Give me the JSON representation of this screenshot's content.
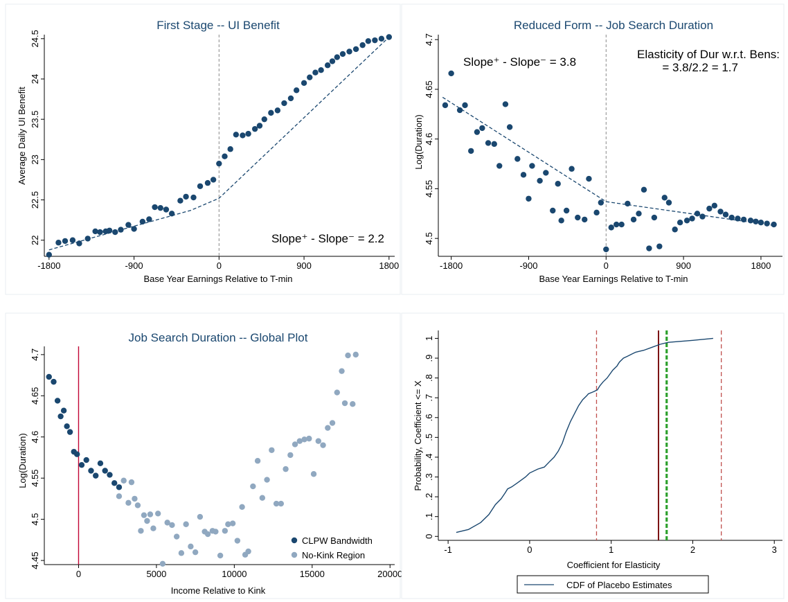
{
  "colors": {
    "navy": "#1a476f",
    "gray_point": "#90a8c0",
    "title": "#1a476f",
    "kink_line": "#c10534",
    "dash_red": "#c0504d",
    "dark_red": "#7b1112",
    "green": "#2ca02c",
    "frame": "#e8eef2"
  },
  "chart_data": [
    {
      "id": "first_stage",
      "type": "scatter",
      "title": "First Stage -- UI Benefit",
      "xlabel": "Base Year Earnings Relative to T-min",
      "ylabel": "Average Daily UI Benefit",
      "xlim": [
        -1850,
        1860
      ],
      "ylim": [
        21.8,
        24.55
      ],
      "xticks": [
        -1800,
        -900,
        0,
        900,
        1800
      ],
      "xtick_labels": [
        "-1800",
        "-900",
        "0",
        "900",
        "1800"
      ],
      "yticks": [
        22,
        22.5,
        23,
        23.5,
        24,
        24.5
      ],
      "ytick_labels": [
        "22",
        "22.5",
        "23",
        "23.5",
        "24",
        "24.5"
      ],
      "annotation": "Slope⁺ - Slope⁻ = 2.2",
      "kink_at": 0,
      "points": {
        "x": [
          -1800,
          -1700,
          -1630,
          -1550,
          -1480,
          -1390,
          -1310,
          -1260,
          -1200,
          -1160,
          -1100,
          -1040,
          -960,
          -900,
          -810,
          -740,
          -680,
          -620,
          -560,
          -500,
          -410,
          -350,
          -270,
          -200,
          -120,
          -60,
          0,
          60,
          120,
          180,
          250,
          310,
          380,
          430,
          480,
          550,
          620,
          690,
          760,
          820,
          900,
          960,
          1020,
          1080,
          1150,
          1200,
          1250,
          1310,
          1380,
          1450,
          1520,
          1580,
          1650,
          1720,
          1800
        ],
        "y": [
          21.82,
          21.97,
          21.99,
          22.0,
          21.96,
          22.02,
          22.11,
          22.1,
          22.11,
          22.12,
          22.1,
          22.13,
          22.19,
          22.14,
          22.23,
          22.26,
          22.41,
          22.4,
          22.38,
          22.33,
          22.49,
          22.54,
          22.53,
          22.67,
          22.71,
          22.75,
          22.95,
          23.04,
          23.13,
          23.31,
          23.3,
          23.32,
          23.38,
          23.42,
          23.5,
          23.58,
          23.61,
          23.7,
          23.76,
          23.86,
          23.95,
          24.02,
          24.08,
          24.11,
          24.17,
          24.22,
          24.27,
          24.31,
          24.34,
          24.37,
          24.42,
          24.47,
          24.48,
          24.5,
          24.52
        ]
      },
      "fit": {
        "x": [
          -1800,
          -300,
          0,
          1800
        ],
        "y": [
          21.88,
          22.37,
          22.52,
          24.52
        ]
      }
    },
    {
      "id": "reduced_form",
      "type": "scatter",
      "title": "Reduced Form -- Job Search Duration",
      "xlabel": "Base Year Earnings Relative to T-min",
      "ylabel": "Log(Duration)",
      "xlim": [
        -1950,
        2050
      ],
      "ylim": [
        4.482,
        4.705
      ],
      "xticks": [
        -1800,
        -900,
        0,
        900,
        1800
      ],
      "xtick_labels": [
        "-1800",
        "-900",
        "0",
        "900",
        "1800"
      ],
      "yticks": [
        4.5,
        4.55,
        4.6,
        4.65,
        4.7
      ],
      "ytick_labels": [
        "4.5",
        "4.55",
        "4.6",
        "4.65",
        "4.7"
      ],
      "annotation_left": "Slope⁺ - Slope⁻ = 3.8",
      "annotation_right_1": "Elasticity of Dur w.r.t. Bens:",
      "annotation_right_2": "= 3.8/2.2 = 1.7",
      "kink_at": 0,
      "points": {
        "x": [
          -1870,
          -1800,
          -1700,
          -1640,
          -1570,
          -1500,
          -1440,
          -1370,
          -1300,
          -1240,
          -1170,
          -1120,
          -1030,
          -960,
          -900,
          -860,
          -770,
          -700,
          -620,
          -560,
          -520,
          -460,
          -400,
          -330,
          -250,
          -200,
          -110,
          -60,
          0,
          60,
          120,
          180,
          250,
          320,
          380,
          440,
          500,
          560,
          620,
          680,
          730,
          800,
          860,
          940,
          1000,
          1060,
          1120,
          1200,
          1260,
          1330,
          1390,
          1460,
          1530,
          1600,
          1680,
          1740,
          1800,
          1870,
          1950
        ],
        "y": [
          4.634,
          4.666,
          4.629,
          4.634,
          4.588,
          4.607,
          4.611,
          4.596,
          4.595,
          4.573,
          4.635,
          4.612,
          4.58,
          4.564,
          4.54,
          4.573,
          4.558,
          4.566,
          4.528,
          4.555,
          4.518,
          4.528,
          4.57,
          4.521,
          4.519,
          4.56,
          4.526,
          4.536,
          4.489,
          4.511,
          4.514,
          4.514,
          4.535,
          4.519,
          4.525,
          4.549,
          4.49,
          4.521,
          4.492,
          4.541,
          4.536,
          4.509,
          4.516,
          4.518,
          4.52,
          4.525,
          4.522,
          4.53,
          4.533,
          4.527,
          4.524,
          4.521,
          4.52,
          4.519,
          4.518,
          4.517,
          4.516,
          4.515,
          4.514
        ]
      },
      "fit": {
        "x": [
          -1900,
          0,
          1950
        ],
        "y": [
          4.642,
          4.537,
          4.513
        ]
      }
    },
    {
      "id": "global_plot",
      "type": "scatter",
      "title": "Job Search Duration -- Global Plot",
      "xlabel": "Income Relative to Kink",
      "ylabel": "Log(Duration)",
      "xlim": [
        -2200,
        20300
      ],
      "ylim": [
        4.445,
        4.71
      ],
      "xticks": [
        0,
        5000,
        10000,
        15000,
        20000
      ],
      "xtick_labels": [
        "0",
        "5000",
        "10000",
        "15000",
        "20000"
      ],
      "yticks": [
        4.45,
        4.5,
        4.55,
        4.6,
        4.65,
        4.7
      ],
      "ytick_labels": [
        "4.45",
        "4.5",
        "4.55",
        "4.6",
        "4.65",
        "4.7"
      ],
      "kink_at": 0,
      "legend": [
        "CLPW Bandwidth",
        "No-Kink Region"
      ],
      "series": [
        {
          "name": "CLPW Bandwidth",
          "x": [
            -1900,
            -1600,
            -1350,
            -1150,
            -950,
            -750,
            -550,
            -300,
            -100,
            200,
            500,
            800,
            1100,
            1400,
            1700,
            2000,
            2300,
            2600
          ],
          "y": [
            4.673,
            4.667,
            4.644,
            4.625,
            4.632,
            4.613,
            4.606,
            4.582,
            4.579,
            4.566,
            4.572,
            4.559,
            4.553,
            4.568,
            4.559,
            4.554,
            4.544,
            4.539
          ]
        },
        {
          "name": "No-Kink Region",
          "x": [
            2600,
            2900,
            3200,
            3400,
            3600,
            3800,
            4000,
            4200,
            4400,
            4600,
            4800,
            5100,
            5400,
            5700,
            6000,
            6300,
            6600,
            6900,
            7200,
            7500,
            7800,
            8100,
            8300,
            8600,
            8800,
            9100,
            9400,
            9600,
            9900,
            10200,
            10500,
            10700,
            10900,
            11200,
            11500,
            11800,
            12100,
            12400,
            12700,
            13000,
            13300,
            13600,
            13900,
            14200,
            14500,
            14800,
            15100,
            15400,
            15700,
            16000,
            16300,
            16600,
            16900,
            17100,
            17300,
            17600,
            17800
          ],
          "y": [
            4.528,
            4.547,
            4.52,
            4.545,
            4.525,
            4.517,
            4.486,
            4.505,
            4.498,
            4.506,
            4.489,
            4.507,
            4.446,
            4.496,
            4.493,
            4.479,
            4.459,
            4.494,
            4.467,
            4.46,
            4.503,
            4.485,
            4.482,
            4.486,
            4.485,
            4.456,
            4.486,
            4.494,
            4.495,
            4.474,
            4.515,
            4.457,
            4.461,
            4.54,
            4.571,
            4.526,
            4.548,
            4.584,
            4.519,
            4.519,
            4.561,
            4.578,
            4.591,
            4.595,
            4.597,
            4.598,
            4.555,
            4.595,
            4.59,
            4.611,
            4.617,
            4.654,
            4.68,
            4.641,
            4.699,
            4.64,
            4.7
          ]
        }
      ]
    },
    {
      "id": "placebo_cdf",
      "type": "line",
      "xlabel": "Coefficient for Elasticity",
      "ylabel": "Probability, Coefficient <= X",
      "xlim": [
        -1.12,
        3.1
      ],
      "ylim": [
        -0.02,
        1.04
      ],
      "xticks": [
        -1,
        0,
        1,
        2,
        3
      ],
      "xtick_labels": [
        "-1",
        "0",
        "1",
        "2",
        "3"
      ],
      "yticks": [
        0,
        0.1,
        0.2,
        0.3,
        0.4,
        0.5,
        0.6,
        0.7,
        0.8,
        0.9,
        1
      ],
      "ytick_labels": [
        "0",
        ".1",
        ".2",
        ".3",
        ".4",
        ".5",
        ".6",
        ".7",
        ".8",
        ".9",
        "1"
      ],
      "legend": [
        "CDF of Placebo Estimates"
      ],
      "vlines_dashed_red": [
        0.82,
        2.35
      ],
      "vline_solid_darkred": 1.58,
      "vline_green_dashed": 1.68,
      "series": [
        {
          "name": "CDF of Placebo Estimates",
          "x": [
            -0.9,
            -0.75,
            -0.6,
            -0.5,
            -0.42,
            -0.35,
            -0.3,
            -0.27,
            -0.22,
            -0.15,
            -0.05,
            0.0,
            0.1,
            0.18,
            0.25,
            0.3,
            0.35,
            0.4,
            0.45,
            0.5,
            0.55,
            0.6,
            0.65,
            0.7,
            0.72,
            0.78,
            0.83,
            0.86,
            0.9,
            0.95,
            1.02,
            1.07,
            1.1,
            1.15,
            1.2,
            1.25,
            1.3,
            1.4,
            1.5,
            1.6,
            1.7,
            2.0,
            2.25
          ],
          "y": [
            0.02,
            0.035,
            0.07,
            0.11,
            0.16,
            0.19,
            0.22,
            0.24,
            0.25,
            0.27,
            0.3,
            0.32,
            0.34,
            0.35,
            0.38,
            0.4,
            0.43,
            0.47,
            0.53,
            0.58,
            0.62,
            0.66,
            0.69,
            0.71,
            0.72,
            0.73,
            0.74,
            0.76,
            0.78,
            0.8,
            0.84,
            0.86,
            0.88,
            0.9,
            0.91,
            0.92,
            0.93,
            0.94,
            0.955,
            0.97,
            0.98,
            0.99,
            1.0
          ]
        }
      ]
    }
  ]
}
